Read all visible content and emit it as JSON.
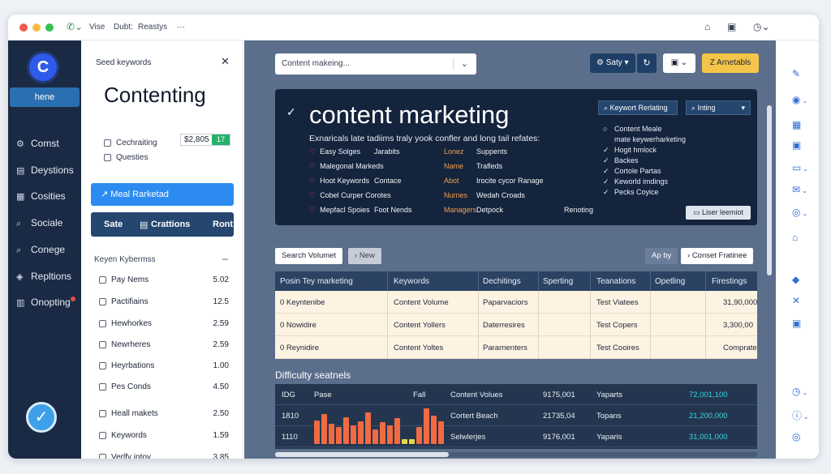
{
  "titlebar": {
    "items": [
      "Vise",
      "Dubt:",
      "Reastys"
    ],
    "more": "···"
  },
  "nav": {
    "logo": "C",
    "home": "hene",
    "items": [
      {
        "label": "Comst",
        "icon": "gear-icon",
        "glyph": "⚙"
      },
      {
        "label": "Deystions",
        "icon": "document-icon",
        "glyph": "▤"
      },
      {
        "label": "Cosities",
        "icon": "grid-icon",
        "glyph": "▦"
      },
      {
        "label": "Sociale",
        "icon": "search-icon",
        "glyph": "⌕"
      },
      {
        "label": "Conege",
        "icon": "magnifier-icon",
        "glyph": "⌕"
      },
      {
        "label": "Repltions",
        "icon": "shield-icon",
        "glyph": "◈"
      },
      {
        "label": "Onopting",
        "icon": "chart-icon",
        "glyph": "▥"
      }
    ]
  },
  "side": {
    "title": "Seed keywords",
    "heading": "Contenting",
    "options": [
      "Cechraiting",
      "Questies"
    ],
    "price": "$2,805",
    "price_badge": "17",
    "primary_button": "Meal Rarketad",
    "tabs": [
      "Sate",
      "Crattions",
      "Ront"
    ],
    "keyword_header": "Keyen Kybermss",
    "keywords": [
      {
        "label": "Pay Nems",
        "value": "5.02"
      },
      {
        "label": "Pactifiains",
        "value": "12.5"
      },
      {
        "label": "Hewhorkes",
        "value": "2.59"
      },
      {
        "label": "Newrheres",
        "value": "2.59"
      },
      {
        "label": "Heyrbations",
        "value": "1.00"
      },
      {
        "label": "Pes Conds",
        "value": "4.50"
      },
      {
        "label": "Heall makets",
        "value": "2.50"
      },
      {
        "label": "Keywords",
        "value": "1.59"
      },
      {
        "label": "Verlfy intoy",
        "value": "3.85"
      }
    ]
  },
  "toolbar": {
    "search_value": "Content makeing...",
    "save": "Saty",
    "yellow": "Z Arnetabls"
  },
  "hero": {
    "title": "content marketing",
    "subtitle": "Exnaricals late tadiims traly yook confler and long tail refates:",
    "col1": [
      "Easy Solges",
      "Malegonal Markeds",
      "Hoot Keywords",
      "Cobel Curper Corotes",
      "Mepfacl Spoies"
    ],
    "col2": [
      "Jarabits",
      "",
      "Contace",
      "",
      "Foot Nends"
    ],
    "col3": [
      "Lonez",
      "Name",
      "Abot",
      "Nurnes",
      "Managers"
    ],
    "col4": [
      "Suppents",
      "Trafleds",
      "Irocite cycor Ranage",
      "Wedah Croads",
      "Detpock"
    ],
    "col5": [
      "",
      "",
      "",
      "",
      "Renoting"
    ],
    "btn1": "Keywort Rerlating",
    "btn2": "Inting",
    "right_items": [
      {
        "label": "Content Meale",
        "mark": "○"
      },
      {
        "label": "mate keywerharketing",
        "mark": ""
      },
      {
        "label": "Hogit hmlock",
        "mark": "✓"
      },
      {
        "label": "Backes",
        "mark": "✓"
      },
      {
        "label": "Cortole Partas",
        "mark": "✓"
      },
      {
        "label": "Keworld imdings",
        "mark": "✓"
      },
      {
        "label": "Pecks Coyice",
        "mark": "✓"
      }
    ],
    "user_button": "Liser leemiot"
  },
  "chips": {
    "search_volume": "Search Volumet",
    "new": "New",
    "ap_by": "Ap by",
    "filter": "Conset Fratinee"
  },
  "table": {
    "headers": [
      "Posin Tey marketing",
      "Keywords",
      "Dechitings",
      "Sperting",
      "Teanations",
      "Opetling",
      "Firestings"
    ],
    "rows": [
      {
        "c1": "0  Keyntenibe",
        "c2": "Content Volume",
        "c3": "Paparvaciors",
        "c5": "Test Viatees",
        "c7": "31,90,000"
      },
      {
        "c1": "0  Nowidire",
        "c2": "Content Yollers",
        "c3": "Daterresires",
        "c5": "Test Copers",
        "c7": "3,300,00"
      },
      {
        "c1": "0  Reynidire",
        "c2": "Content Yoltes",
        "c3": "Pararnenters",
        "c5": "Test Cooires",
        "c7": "Comprate"
      }
    ]
  },
  "difficulty": {
    "title": "Difficulty seatnels",
    "rows": [
      {
        "a": "IDG",
        "b": "Pase",
        "c": "Fall",
        "d": "Content Volues",
        "e": "9175,001",
        "f": "Yaparts",
        "g": "72,001,100"
      },
      {
        "a": "1810",
        "b": "",
        "c": "",
        "d": "Cortert Beach",
        "e": "21735,04",
        "f": "Topans",
        "g": "21,200,000"
      },
      {
        "a": "1110",
        "b": "",
        "c": "",
        "d": "Selwlerjes",
        "e": "9176,001",
        "f": "Yaparis",
        "g": "31,001,000"
      }
    ],
    "bars": [
      0.62,
      0.8,
      0.55,
      0.45,
      0.72,
      0.5,
      0.6,
      0.85,
      0.4,
      0.58,
      0.5,
      0.7,
      0.12,
      0.12,
      0.45,
      0.95,
      0.75,
      0.6
    ]
  },
  "colors": {
    "nav_bg": "#1b2a44",
    "main_bg": "#5b6e8b",
    "accent": "#2c8bf0",
    "yellow": "#f5c54a",
    "bar": "#f06a42",
    "cyan": "#38d6e0"
  }
}
